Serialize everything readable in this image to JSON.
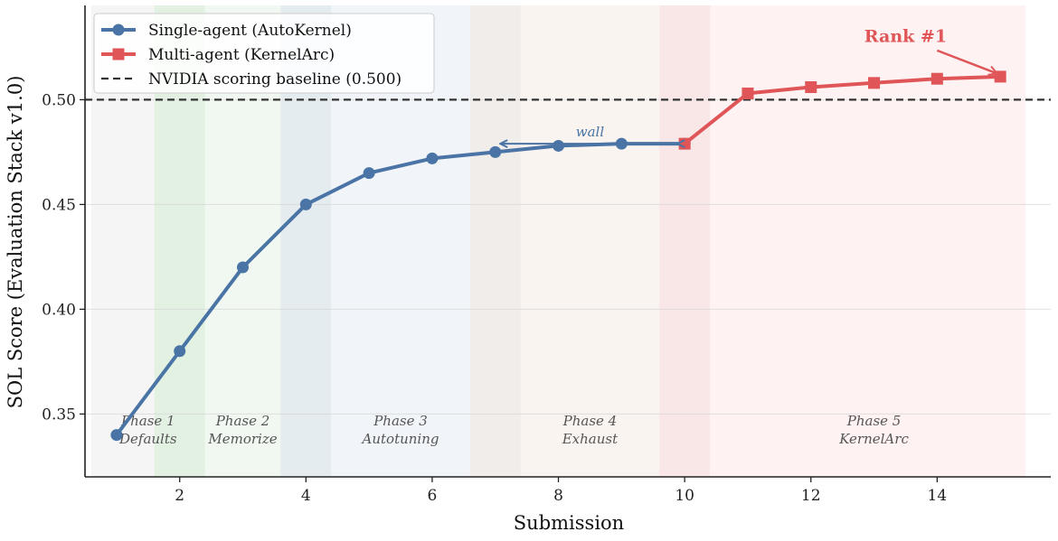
{
  "chart_data": {
    "type": "line",
    "xlabel": "Submission",
    "ylabel": "SOL Score (Evaluation Stack v1.0)",
    "xlim": [
      0.5,
      15.8
    ],
    "ylim": [
      0.32,
      0.545
    ],
    "xticks": [
      2,
      4,
      6,
      8,
      10,
      12,
      14
    ],
    "yticks": [
      0.35,
      0.4,
      0.45,
      0.5
    ],
    "ytick_labels": [
      "0.35",
      "0.40",
      "0.45",
      "0.50"
    ],
    "grid": "horizontal",
    "legend_position": "top-left",
    "series": [
      {
        "name": "Single-agent (AutoKernel)",
        "color": "#4a74a5",
        "marker": "circle",
        "x": [
          1,
          2,
          3,
          4,
          5,
          6,
          7,
          8,
          9,
          10
        ],
        "y": [
          0.34,
          0.38,
          0.42,
          0.45,
          0.465,
          0.472,
          0.475,
          0.478,
          0.479,
          0.479
        ]
      },
      {
        "name": "Multi-agent (KernelArc)",
        "color": "#e05558",
        "marker": "square",
        "x": [
          10,
          11,
          12,
          13,
          14,
          15
        ],
        "y": [
          0.479,
          0.503,
          0.506,
          0.508,
          0.51,
          0.511
        ]
      }
    ],
    "baseline": {
      "name": "NVIDIA scoring baseline (0.500)",
      "value": 0.5,
      "color": "#333333"
    },
    "phases": [
      {
        "line1": "Phase 1",
        "line2": "Defaults",
        "x_start": 0.6,
        "x_end": 1.6,
        "color": "#ececec",
        "label_x": 1.5
      },
      {
        "line1": "Phase 2",
        "line2": "Memorize",
        "x_start": 1.6,
        "x_end": 3.6,
        "color": "#e6f2e6",
        "label_x": 3.0
      },
      {
        "line1": "Phase 3",
        "line2": "Autotuning",
        "x_start": 3.6,
        "x_end": 6.6,
        "color": "#e6edf5",
        "label_x": 5.5
      },
      {
        "line1": "Phase 4",
        "line2": "Exhaust",
        "x_start": 6.6,
        "x_end": 9.6,
        "color": "#f5ebe6",
        "label_x": 8.5
      },
      {
        "line1": "Phase 5",
        "line2": "KernelArc",
        "x_start": 9.6,
        "x_end": 15.4,
        "color": "#fde8e8",
        "label_x": 13.0
      }
    ],
    "transitions": [
      {
        "x_start": 1.6,
        "x_end": 2.4,
        "color": "#d3e8d3"
      },
      {
        "x_start": 3.6,
        "x_end": 4.4,
        "color": "#d6e3e3"
      },
      {
        "x_start": 6.6,
        "x_end": 7.4,
        "color": "#e6e4e2"
      },
      {
        "x_start": 9.6,
        "x_end": 10.4,
        "color": "#f5dada"
      }
    ],
    "annotations": [
      {
        "text": "wall",
        "color": "#4a74a5",
        "text_x": 8.5,
        "text_y": 0.4825,
        "arrow_from": [
          10.0,
          0.479
        ],
        "arrow_to": [
          7.05,
          0.479
        ],
        "double_headed": true
      },
      {
        "text": "Rank #1",
        "color": "#e05558",
        "text_x": 13.5,
        "text_y": 0.5275,
        "arrow_from": [
          14.0,
          0.5235
        ],
        "arrow_to": [
          14.95,
          0.5125
        ]
      }
    ]
  }
}
